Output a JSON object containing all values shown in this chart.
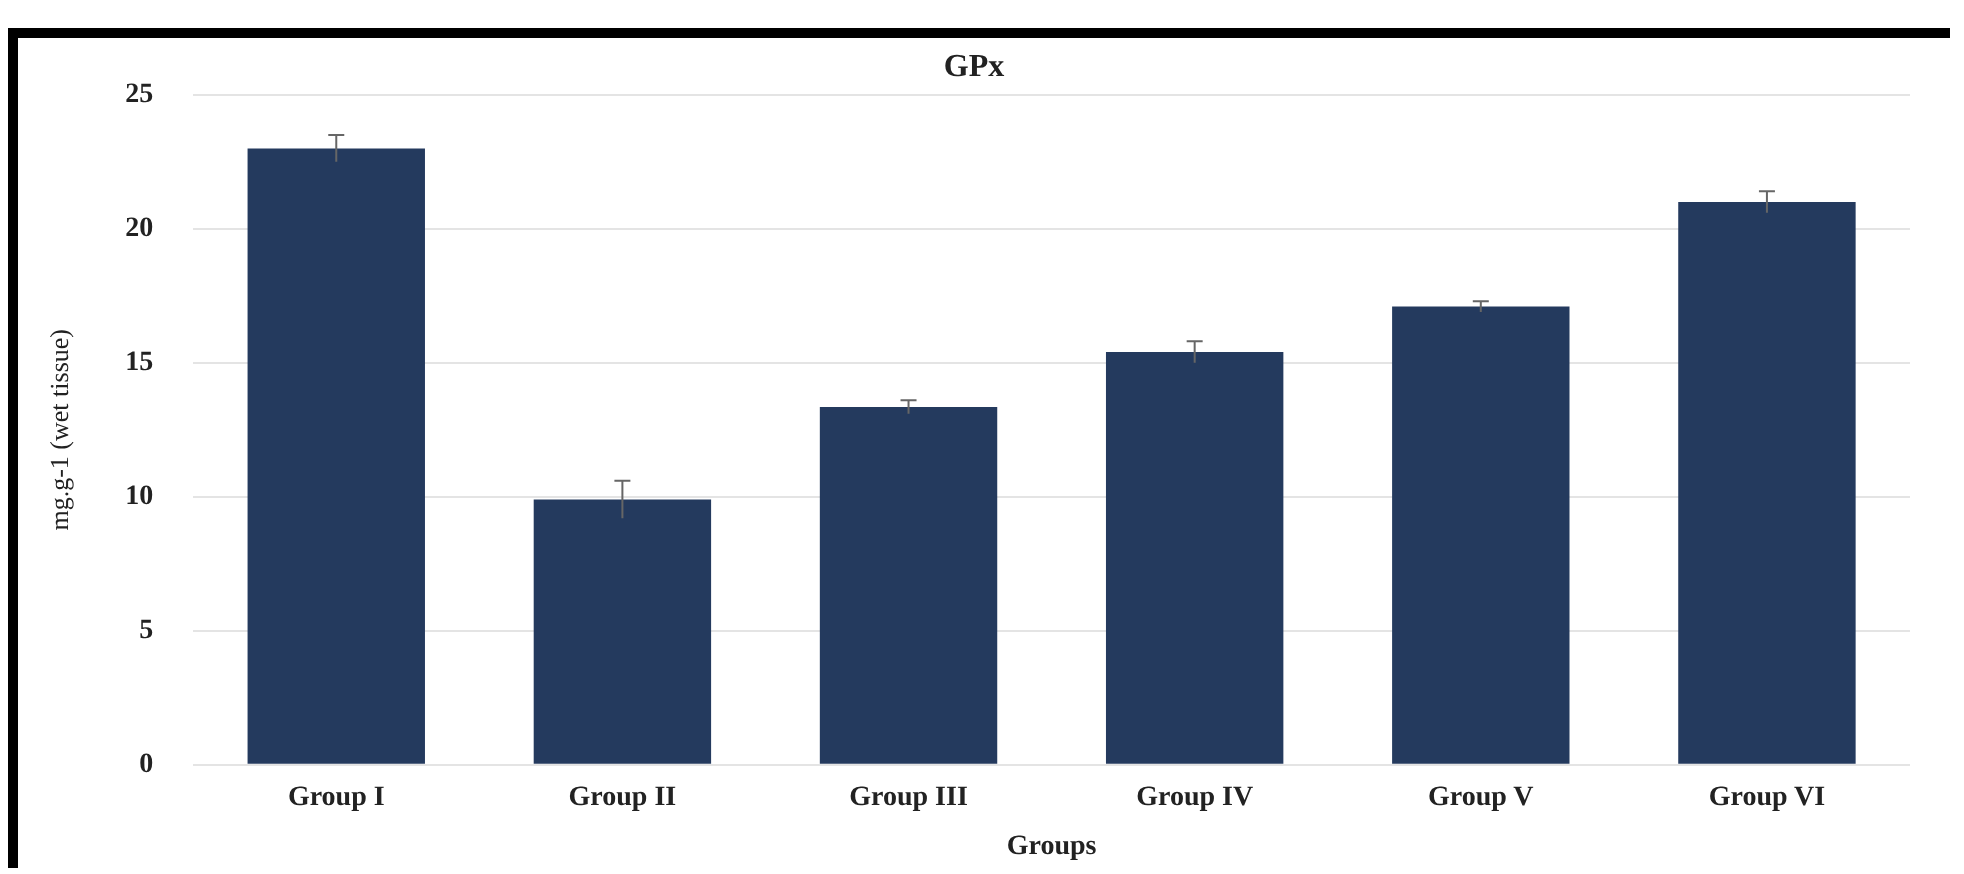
{
  "chart_data": {
    "type": "bar",
    "title": "GPx",
    "xlabel": "Groups",
    "ylabel": "mg.g-1 (wet tissue)",
    "categories": [
      "Group I",
      "Group II",
      "Group III",
      "Group IV",
      "Group V",
      "Group VI"
    ],
    "values": [
      23.0,
      9.9,
      13.35,
      15.4,
      17.1,
      21.0
    ],
    "errors": [
      0.5,
      0.7,
      0.25,
      0.4,
      0.2,
      0.4
    ],
    "color": "#243a5e",
    "ylim": [
      0,
      25
    ],
    "yticks": [
      0,
      5,
      10,
      15,
      20,
      25
    ],
    "grid": "y"
  }
}
